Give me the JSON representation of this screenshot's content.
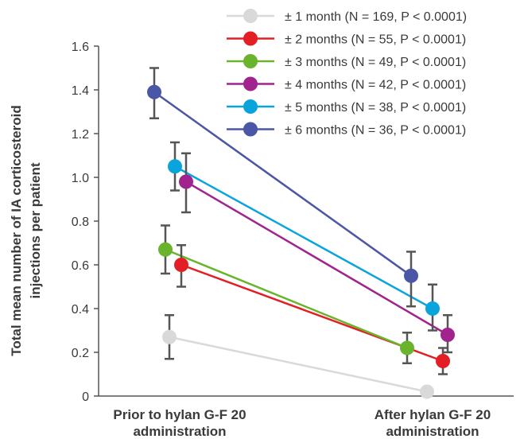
{
  "chart_data": {
    "type": "line",
    "categories": [
      [
        "Prior to hylan G-F 20",
        "administration"
      ],
      [
        "After hylan G-F 20",
        "administration"
      ]
    ],
    "ylabel": [
      "Total mean number of IA corticosteroid",
      "injections per patient"
    ],
    "ylim": [
      0,
      1.6
    ],
    "yticks": [
      0,
      0.2,
      0.4,
      0.6,
      0.8,
      1.0,
      1.2,
      1.4,
      1.6
    ],
    "ytick_labels": [
      "0",
      "0.2",
      "0.4",
      "0.6",
      "0.8",
      "1.0",
      "1.2",
      "1.4",
      "1.6"
    ],
    "grid": false,
    "legend_position": "top-right",
    "series": [
      {
        "name": "± 1 month (N = 169, P < 0.0001)",
        "color": "#d9d9d9",
        "values": [
          0.27,
          0.02
        ],
        "err_low": [
          0.17,
          0.02
        ],
        "err_high": [
          0.37,
          0.02
        ]
      },
      {
        "name": "± 2 months (N = 55, P < 0.0001)",
        "color": "#e31e24",
        "values": [
          0.6,
          0.16
        ],
        "err_low": [
          0.5,
          0.1
        ],
        "err_high": [
          0.69,
          0.22
        ]
      },
      {
        "name": "± 3 months (N = 49, P < 0.0001)",
        "color": "#6ab42d",
        "values": [
          0.67,
          0.22
        ],
        "err_low": [
          0.56,
          0.15
        ],
        "err_high": [
          0.78,
          0.29
        ]
      },
      {
        "name": "± 4 months (N = 42, P < 0.0001)",
        "color": "#a1238d",
        "values": [
          0.98,
          0.28
        ],
        "err_low": [
          0.84,
          0.2
        ],
        "err_high": [
          1.11,
          0.37
        ]
      },
      {
        "name": "± 5 months (N = 38, P < 0.0001)",
        "color": "#0aa4dc",
        "values": [
          1.05,
          0.4
        ],
        "err_low": [
          0.94,
          0.3
        ],
        "err_high": [
          1.16,
          0.51
        ]
      },
      {
        "name": "± 6 months (N = 36, P < 0.0001)",
        "color": "#4a56a6",
        "values": [
          1.39,
          0.55
        ],
        "err_low": [
          1.27,
          0.41
        ],
        "err_high": [
          1.5,
          0.66
        ]
      }
    ]
  }
}
